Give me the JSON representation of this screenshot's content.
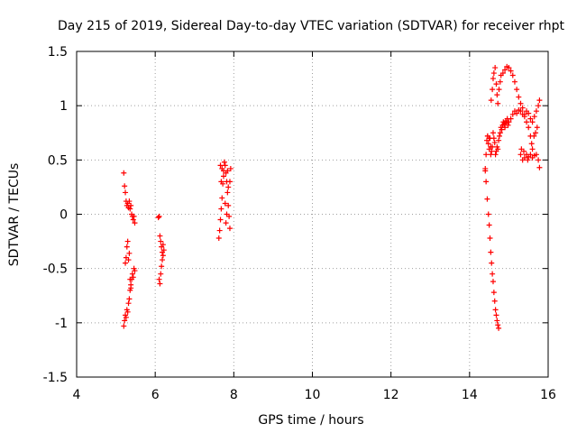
{
  "chart_data": {
    "type": "scatter",
    "title": "Day 215 of 2019, Sidereal Day-to-day VTEC variation (SDTVAR) for receiver rhpt",
    "xlabel": "GPS time / hours",
    "ylabel": "SDTVAR / TECUs",
    "xlim": [
      4,
      16
    ],
    "ylim": [
      -1.5,
      1.5
    ],
    "grid": true,
    "marker": "+",
    "colors": {
      "series": "#ff0000",
      "grid": "#a0a0a0",
      "axes": "#000000"
    },
    "x_ticks": [
      {
        "value": 4,
        "label": "4"
      },
      {
        "value": 6,
        "label": "6"
      },
      {
        "value": 8,
        "label": "8"
      },
      {
        "value": 10,
        "label": "10"
      },
      {
        "value": 12,
        "label": "12"
      },
      {
        "value": 14,
        "label": "14"
      },
      {
        "value": 16,
        "label": "16"
      }
    ],
    "y_ticks": [
      {
        "value": 1.5,
        "label": "1.5"
      },
      {
        "value": 1,
        "label": "1"
      },
      {
        "value": 0.5,
        "label": "0.5"
      },
      {
        "value": 0,
        "label": "0"
      },
      {
        "value": -0.5,
        "label": "-0.5"
      },
      {
        "value": -1,
        "label": "-1"
      },
      {
        "value": -1.5,
        "label": "-1.5"
      }
    ],
    "series": [
      {
        "name": "SDTVAR",
        "points": [
          [
            5.2,
            0.38
          ],
          [
            5.22,
            0.26
          ],
          [
            5.24,
            0.2
          ],
          [
            5.26,
            0.12
          ],
          [
            5.28,
            0.08
          ],
          [
            5.3,
            0.1
          ],
          [
            5.32,
            0.06
          ],
          [
            5.34,
            0.12
          ],
          [
            5.36,
            0.05
          ],
          [
            5.38,
            0.08
          ],
          [
            5.4,
            0.0
          ],
          [
            5.42,
            -0.02
          ],
          [
            5.44,
            -0.05
          ],
          [
            5.46,
            -0.02
          ],
          [
            5.48,
            -0.08
          ],
          [
            5.2,
            -1.03
          ],
          [
            5.22,
            -0.98
          ],
          [
            5.24,
            -0.93
          ],
          [
            5.26,
            -0.95
          ],
          [
            5.28,
            -0.88
          ],
          [
            5.3,
            -0.9
          ],
          [
            5.32,
            -0.82
          ],
          [
            5.34,
            -0.78
          ],
          [
            5.36,
            -0.7
          ],
          [
            5.38,
            -0.65
          ],
          [
            5.4,
            -0.6
          ],
          [
            5.42,
            -0.55
          ],
          [
            5.44,
            -0.58
          ],
          [
            5.46,
            -0.5
          ],
          [
            5.48,
            -0.52
          ],
          [
            5.24,
            -0.45
          ],
          [
            5.26,
            -0.4
          ],
          [
            5.28,
            -0.3
          ],
          [
            5.3,
            -0.25
          ],
          [
            5.32,
            -0.42
          ],
          [
            5.34,
            -0.36
          ],
          [
            5.36,
            -0.6
          ],
          [
            5.38,
            -0.68
          ],
          [
            6.08,
            -0.03
          ],
          [
            6.1,
            -0.02
          ],
          [
            6.12,
            -0.2
          ],
          [
            6.14,
            -0.25
          ],
          [
            6.16,
            -0.3
          ],
          [
            6.18,
            -0.35
          ],
          [
            6.2,
            -0.28
          ],
          [
            6.22,
            -0.33
          ],
          [
            6.1,
            -0.6
          ],
          [
            6.12,
            -0.64
          ],
          [
            6.14,
            -0.55
          ],
          [
            6.16,
            -0.48
          ],
          [
            6.18,
            -0.42
          ],
          [
            6.2,
            -0.38
          ],
          [
            7.62,
            -0.22
          ],
          [
            7.64,
            -0.15
          ],
          [
            7.66,
            -0.05
          ],
          [
            7.68,
            0.05
          ],
          [
            7.7,
            0.15
          ],
          [
            7.72,
            0.28
          ],
          [
            7.74,
            0.4
          ],
          [
            7.76,
            0.48
          ],
          [
            7.78,
            0.45
          ],
          [
            7.8,
            0.38
          ],
          [
            7.82,
            0.3
          ],
          [
            7.84,
            0.2
          ],
          [
            7.86,
            0.08
          ],
          [
            7.88,
            -0.02
          ],
          [
            7.9,
            -0.13
          ],
          [
            7.66,
            0.45
          ],
          [
            7.7,
            0.42
          ],
          [
            7.74,
            0.35
          ],
          [
            7.78,
            0.1
          ],
          [
            7.82,
            0.0
          ],
          [
            7.86,
            0.25
          ],
          [
            7.9,
            0.3
          ],
          [
            7.92,
            0.42
          ],
          [
            7.8,
            -0.08
          ],
          [
            7.84,
            0.4
          ],
          [
            7.68,
            0.3
          ],
          [
            14.4,
            0.4
          ],
          [
            14.42,
            0.55
          ],
          [
            14.44,
            0.68
          ],
          [
            14.46,
            0.72
          ],
          [
            14.48,
            0.65
          ],
          [
            14.5,
            0.6
          ],
          [
            14.52,
            0.7
          ],
          [
            14.54,
            0.55
          ],
          [
            14.56,
            0.58
          ],
          [
            14.58,
            0.62
          ],
          [
            14.6,
            0.75
          ],
          [
            14.62,
            0.7
          ],
          [
            14.64,
            0.66
          ],
          [
            14.66,
            0.55
          ],
          [
            14.68,
            0.58
          ],
          [
            14.7,
            0.62
          ],
          [
            14.72,
            0.6
          ],
          [
            14.74,
            0.68
          ],
          [
            14.76,
            0.72
          ],
          [
            14.78,
            0.75
          ],
          [
            14.8,
            0.8
          ],
          [
            14.82,
            0.78
          ],
          [
            14.84,
            0.82
          ],
          [
            14.86,
            0.85
          ],
          [
            14.88,
            0.83
          ],
          [
            14.9,
            0.8
          ],
          [
            14.92,
            0.86
          ],
          [
            14.94,
            0.84
          ],
          [
            14.96,
            0.88
          ],
          [
            14.98,
            0.82
          ],
          [
            15.0,
            0.85
          ],
          [
            15.05,
            0.88
          ],
          [
            15.1,
            0.92
          ],
          [
            15.15,
            0.95
          ],
          [
            15.2,
            0.93
          ],
          [
            15.25,
            0.96
          ],
          [
            15.3,
            0.95
          ],
          [
            15.35,
            0.92
          ],
          [
            15.4,
            0.9
          ],
          [
            15.45,
            0.95
          ],
          [
            15.5,
            0.93
          ],
          [
            15.55,
            0.88
          ],
          [
            15.6,
            0.85
          ],
          [
            15.65,
            0.9
          ],
          [
            15.7,
            0.95
          ],
          [
            15.75,
            1.0
          ],
          [
            15.78,
            1.05
          ],
          [
            15.72,
            0.8
          ],
          [
            15.68,
            0.75
          ],
          [
            15.64,
            0.72
          ],
          [
            14.55,
            1.05
          ],
          [
            14.58,
            1.15
          ],
          [
            14.6,
            1.25
          ],
          [
            14.62,
            1.3
          ],
          [
            14.65,
            1.35
          ],
          [
            14.68,
            1.2
          ],
          [
            14.7,
            1.1
          ],
          [
            14.72,
            1.02
          ],
          [
            14.75,
            1.15
          ],
          [
            14.78,
            1.22
          ],
          [
            14.8,
            1.28
          ],
          [
            14.85,
            1.3
          ],
          [
            14.9,
            1.33
          ],
          [
            14.95,
            1.36
          ],
          [
            15.0,
            1.35
          ],
          [
            15.05,
            1.32
          ],
          [
            15.1,
            1.28
          ],
          [
            15.15,
            1.22
          ],
          [
            15.2,
            1.15
          ],
          [
            15.25,
            1.08
          ],
          [
            15.3,
            1.02
          ],
          [
            15.35,
            0.98
          ],
          [
            15.4,
            0.92
          ],
          [
            15.45,
            0.85
          ],
          [
            15.5,
            0.8
          ],
          [
            15.55,
            0.72
          ],
          [
            15.58,
            0.65
          ],
          [
            15.6,
            0.6
          ],
          [
            15.3,
            0.55
          ],
          [
            15.35,
            0.5
          ],
          [
            15.4,
            0.52
          ],
          [
            15.45,
            0.55
          ],
          [
            15.5,
            0.53
          ],
          [
            15.55,
            0.55
          ],
          [
            15.6,
            0.52
          ],
          [
            15.65,
            0.54
          ],
          [
            15.7,
            0.55
          ],
          [
            15.75,
            0.5
          ],
          [
            15.78,
            0.43
          ],
          [
            15.32,
            0.6
          ],
          [
            15.38,
            0.58
          ],
          [
            15.48,
            0.5
          ],
          [
            14.4,
            0.42
          ],
          [
            14.42,
            0.3
          ],
          [
            14.45,
            0.14
          ],
          [
            14.48,
            0.0
          ],
          [
            14.5,
            -0.1
          ],
          [
            14.52,
            -0.22
          ],
          [
            14.54,
            -0.35
          ],
          [
            14.56,
            -0.45
          ],
          [
            14.58,
            -0.55
          ],
          [
            14.6,
            -0.62
          ],
          [
            14.62,
            -0.72
          ],
          [
            14.64,
            -0.8
          ],
          [
            14.66,
            -0.88
          ],
          [
            14.68,
            -0.93
          ],
          [
            14.7,
            -0.98
          ],
          [
            14.72,
            -1.02
          ],
          [
            14.74,
            -1.05
          ],
          [
            14.46,
            0.72
          ],
          [
            14.5,
            0.7
          ],
          [
            14.54,
            0.62
          ]
        ]
      }
    ]
  }
}
